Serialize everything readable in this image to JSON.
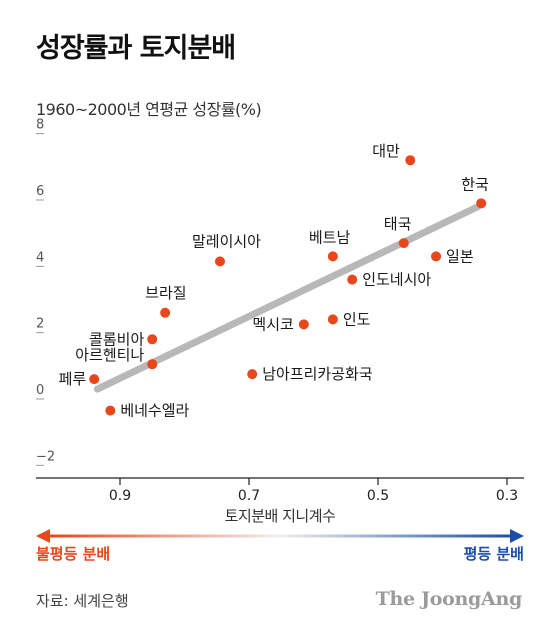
{
  "title": "성장률과 토지분배",
  "subtitle": "1960~2000년 연평균 성장률(%)",
  "xlabel": "토지분배 지니계수",
  "left_label": "불평등 분배",
  "right_label": "평등 분배",
  "source": "자료: 세계은행",
  "logo": "The JoongAng",
  "colors": {
    "point": "#e8471c",
    "trend": "#b8b8b8",
    "unequal": "#e8471c",
    "equal": "#1a4fa8"
  },
  "chart_data": {
    "type": "scatter",
    "title": "성장률과 토지분배",
    "xlabel": "토지분배 지니계수",
    "ylabel": "1960~2000년 연평균 성장률(%)",
    "xlim": [
      0.3,
      0.95
    ],
    "ylim": [
      -2,
      8
    ],
    "x_reversed": true,
    "x_ticks": [
      0.9,
      0.7,
      0.5,
      0.3
    ],
    "x_tick_labels": [
      "0.9",
      "0.7",
      "0.5",
      "0.3"
    ],
    "y_ticks": [
      -2,
      0,
      2,
      4,
      6,
      8
    ],
    "y_tick_labels": [
      "−2",
      "0",
      "2",
      "4",
      "6",
      "8"
    ],
    "grid": false,
    "points": [
      {
        "label": "대만",
        "x": 0.45,
        "y": 7.2
      },
      {
        "label": "한국",
        "x": 0.34,
        "y": 5.9
      },
      {
        "label": "태국",
        "x": 0.46,
        "y": 4.7
      },
      {
        "label": "일본",
        "x": 0.41,
        "y": 4.3
      },
      {
        "label": "베트남",
        "x": 0.57,
        "y": 4.3
      },
      {
        "label": "말레이시아",
        "x": 0.745,
        "y": 4.15
      },
      {
        "label": "인도네시아",
        "x": 0.54,
        "y": 3.6
      },
      {
        "label": "브라질",
        "x": 0.83,
        "y": 2.6
      },
      {
        "label": "인도",
        "x": 0.57,
        "y": 2.4
      },
      {
        "label": "멕시코",
        "x": 0.615,
        "y": 2.25
      },
      {
        "label": "콜롬비아",
        "x": 0.85,
        "y": 1.8
      },
      {
        "label": "아르헨티나",
        "x": 0.85,
        "y": 1.05
      },
      {
        "label": "남아프리카공화국",
        "x": 0.695,
        "y": 0.75
      },
      {
        "label": "페루",
        "x": 0.94,
        "y": 0.6
      },
      {
        "label": "베네수엘라",
        "x": 0.915,
        "y": -0.35
      }
    ],
    "trendline": [
      [
        0.935,
        0.3
      ],
      [
        0.345,
        5.8
      ]
    ]
  }
}
